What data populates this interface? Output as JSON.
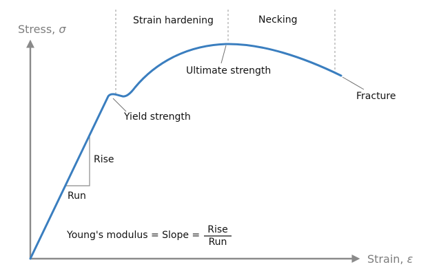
{
  "axes": {
    "y_label": "Stress, ",
    "y_symbol": "σ",
    "x_label": "Strain, ",
    "x_symbol": "ε"
  },
  "regions": {
    "strain_hardening": "Strain hardening",
    "necking": "Necking"
  },
  "points": {
    "yield_strength": "Yield strength",
    "ultimate_strength": "Ultimate strength",
    "fracture": "Fracture"
  },
  "slope_triangle": {
    "rise": "Rise",
    "run": "Run"
  },
  "formula": {
    "lhs": "Young's modulus = Slope =",
    "numerator": "Rise",
    "denominator": "Run"
  },
  "colors": {
    "curve": "#3a7ebf",
    "axis": "#8a8a8a",
    "axis_label": "#7d7d7d"
  }
}
